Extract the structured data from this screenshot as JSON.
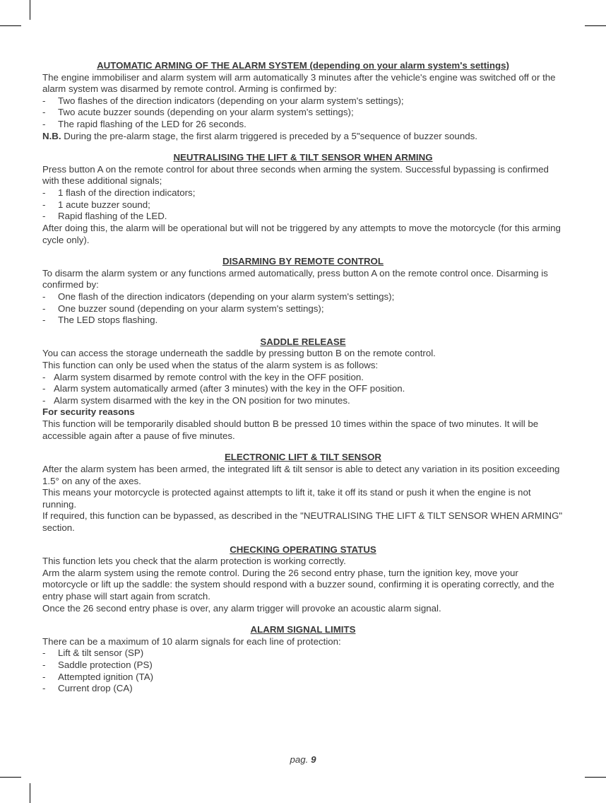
{
  "page_number_label": "pag. ",
  "page_number": "9",
  "sections": {
    "auto_arming": {
      "heading": "AUTOMATIC ARMING OF THE ALARM SYSTEM (depending on your alarm system's settings)",
      "intro": "The engine immobiliser and alarm system will arm automatically 3 minutes after the vehicle's engine was switched off or the alarm system was disarmed by remote control. Arming is confirmed by:",
      "items": [
        "Two flashes of the direction indicators (depending on your alarm system's settings);",
        "Two acute buzzer sounds (depending on your alarm system's settings);",
        "The rapid flashing of the LED for 26 seconds."
      ],
      "nb_label": "N.B.",
      "nb_text": " During the pre-alarm stage, the first alarm triggered is preceded by a 5\"sequence of buzzer sounds."
    },
    "neutralising": {
      "heading": "NEUTRALISING THE LIFT & TILT SENSOR WHEN ARMING",
      "intro": "Press button A on the remote control for about three seconds when arming the system. Successful bypassing is confirmed with these additional signals;",
      "items": [
        "1 flash of the direction indicators;",
        "1 acute buzzer sound;",
        "Rapid flashing of the LED."
      ],
      "outro": "After doing this, the alarm will be operational but will not be triggered by any attempts to move the motorcycle (for this arming cycle only)."
    },
    "disarming": {
      "heading": "DISARMING BY REMOTE CONTROL",
      "intro": "To disarm the alarm system or any functions armed automatically, press button A on the remote control once. Disarming is confirmed by:",
      "items": [
        "One flash of the direction indicators (depending on your alarm system's settings);",
        "One buzzer sound (depending on your alarm system's settings);",
        "The LED stops flashing."
      ]
    },
    "saddle": {
      "heading": "SADDLE RELEASE",
      "p1": "You can access the storage underneath the saddle by pressing button B on the remote control.",
      "p2": "This function can only be used when the status of the alarm system is as follows:",
      "items": [
        "Alarm system disarmed by remote control with the key in the OFF position.",
        "Alarm system automatically armed (after 3 minutes) with the key in the OFF position.",
        "Alarm system disarmed with the key in the ON position for two minutes."
      ],
      "sec_label": "For security reasons",
      "p3": "This function will be temporarily disabled should button B be pressed 10 times within the space of two minutes. It will be accessible again after a pause of five minutes."
    },
    "sensor": {
      "heading": "ELECTRONIC LIFT & TILT SENSOR",
      "p1": "After the alarm system has been armed, the integrated lift & tilt sensor is able to detect any variation in its position exceeding 1.5° on any of the axes.",
      "p2": "This means your motorcycle is protected against attempts to lift it, take it off its stand or push it when the engine is not running.",
      "p3": "If required, this function can be bypassed, as described in the \"NEUTRALISING THE LIFT & TILT SENSOR WHEN ARMING\" section."
    },
    "checking": {
      "heading": "CHECKING OPERATING STATUS",
      "p1": "This function lets you check that the alarm protection is working correctly.",
      "p2": "Arm the alarm system using the remote control. During the 26 second entry phase, turn the ignition key, move your motorcycle or lift up the saddle: the system should respond with a buzzer sound, confirming it is operating correctly, and the entry phase will start again from scratch.",
      "p3": "Once the 26 second entry phase is over, any alarm trigger will provoke an acoustic alarm signal."
    },
    "limits": {
      "heading": "ALARM SIGNAL LIMITS",
      "intro": "There can be a maximum of 10 alarm signals for each line of protection:",
      "items": [
        "Lift & tilt sensor (SP)",
        "Saddle protection (PS)",
        "Attempted ignition (TA)",
        "Current drop (CA)"
      ]
    }
  }
}
